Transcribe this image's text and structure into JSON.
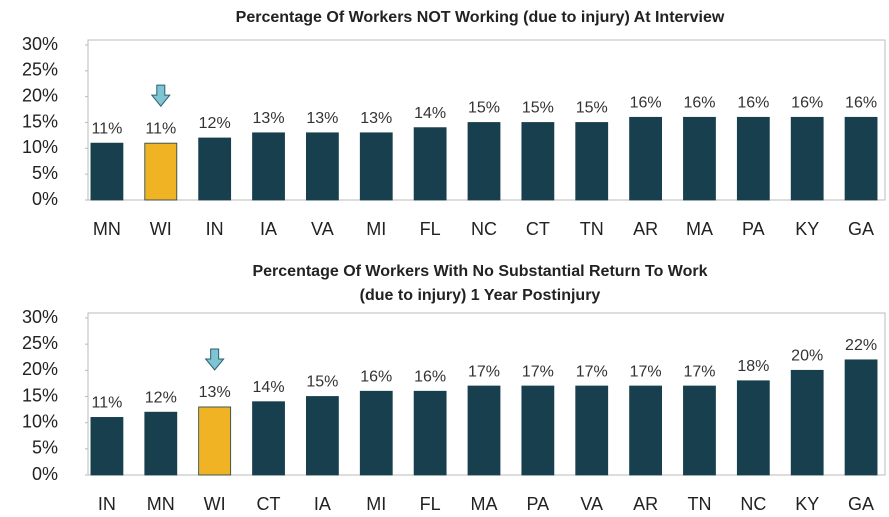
{
  "chart_data": [
    {
      "type": "bar",
      "title": [
        "Percentage Of Workers NOT Working (due to injury) At Interview"
      ],
      "categories": [
        "MN",
        "WI",
        "IN",
        "IA",
        "VA",
        "MI",
        "FL",
        "NC",
        "CT",
        "TN",
        "AR",
        "MA",
        "PA",
        "KY",
        "GA"
      ],
      "values": [
        11,
        11,
        12,
        13,
        13,
        13,
        14,
        15,
        15,
        15,
        16,
        16,
        16,
        16,
        16
      ],
      "value_labels": [
        "11%",
        "11%",
        "12%",
        "13%",
        "13%",
        "13%",
        "14%",
        "15%",
        "15%",
        "15%",
        "16%",
        "16%",
        "16%",
        "16%",
        "16%"
      ],
      "colors": [
        "#173f4d",
        "#f0b323",
        "#173f4d",
        "#173f4d",
        "#173f4d",
        "#173f4d",
        "#173f4d",
        "#173f4d",
        "#173f4d",
        "#173f4d",
        "#173f4d",
        "#173f4d",
        "#173f4d",
        "#173f4d",
        "#173f4d"
      ],
      "ylim": [
        0,
        30
      ],
      "yticks": [
        {
          "value": 0,
          "label": "0%"
        },
        {
          "value": 5,
          "label": "5%"
        },
        {
          "value": 10,
          "label": "10%"
        },
        {
          "value": 15,
          "label": "15%"
        },
        {
          "value": 20,
          "label": "20%"
        },
        {
          "value": 25,
          "label": "25%"
        },
        {
          "value": 30,
          "label": "30%"
        }
      ]
    },
    {
      "type": "bar",
      "title": [
        "Percentage Of Workers With No Substantial Return To Work",
        "(due to injury) 1 Year Postinjury"
      ],
      "categories": [
        "IN",
        "MN",
        "WI",
        "CT",
        "IA",
        "MI",
        "FL",
        "MA",
        "PA",
        "VA",
        "AR",
        "TN",
        "NC",
        "KY",
        "GA"
      ],
      "values": [
        11,
        12,
        13,
        14,
        15,
        16,
        16,
        17,
        17,
        17,
        17,
        17,
        18,
        20,
        22
      ],
      "value_labels": [
        "11%",
        "12%",
        "13%",
        "14%",
        "15%",
        "16%",
        "16%",
        "17%",
        "17%",
        "17%",
        "17%",
        "17%",
        "18%",
        "20%",
        "22%"
      ],
      "colors": [
        "#173f4d",
        "#173f4d",
        "#f0b323",
        "#173f4d",
        "#173f4d",
        "#173f4d",
        "#173f4d",
        "#173f4d",
        "#173f4d",
        "#173f4d",
        "#173f4d",
        "#173f4d",
        "#173f4d",
        "#173f4d",
        "#173f4d"
      ],
      "ylim": [
        0,
        30
      ],
      "yticks": [
        {
          "value": 0,
          "label": "0%"
        },
        {
          "value": 5,
          "label": "5%"
        },
        {
          "value": 10,
          "label": "10%"
        },
        {
          "value": 15,
          "label": "15%"
        },
        {
          "value": 20,
          "label": "20%"
        },
        {
          "value": 25,
          "label": "25%"
        },
        {
          "value": 30,
          "label": "30%"
        }
      ]
    }
  ]
}
